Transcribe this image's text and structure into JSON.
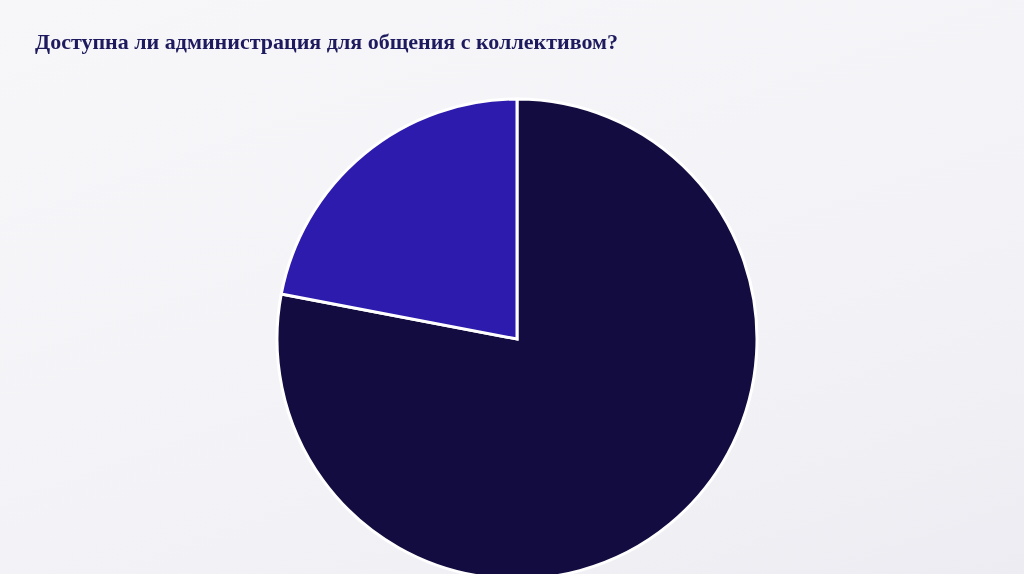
{
  "chart_data": {
    "type": "pie",
    "title": "Доступна ли администрация для общения с коллективом?",
    "categories": [
      null,
      null
    ],
    "values": [
      78,
      22
    ],
    "colors": [
      "#130c40",
      "#2d1bad"
    ]
  }
}
